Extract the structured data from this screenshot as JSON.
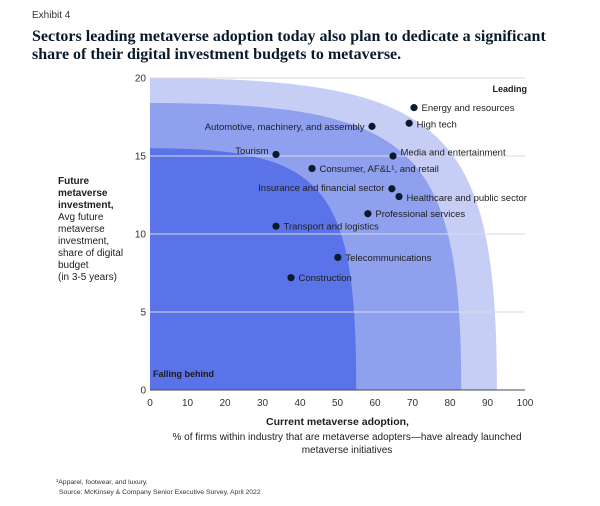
{
  "header": {
    "exhibit": "Exhibit 4"
  },
  "chart_data": {
    "type": "scatter",
    "title_lines": [
      "Sectors leading metaverse adoption today also plan to dedicate a significant",
      "share of their digital investment budgets to metaverse."
    ],
    "xlabel": "Current metaverse adoption,",
    "xlabel_detail_lines": [
      "% of firms within industry that are metaverse adopters—have already launched",
      "metaverse initiatives"
    ],
    "ylabel_lines": [
      "Future",
      "metaverse",
      "investment,"
    ],
    "ylabel_detail_lines": [
      "Avg future",
      "metaverse",
      "investment,",
      "share of digital",
      "budget",
      "(in 3-5 years)"
    ],
    "xlim": [
      0,
      100
    ],
    "ylim": [
      0,
      20
    ],
    "xticks": [
      0,
      10,
      20,
      30,
      40,
      50,
      60,
      70,
      80,
      90,
      100
    ],
    "yticks": [
      0,
      5,
      10,
      15,
      20
    ],
    "point_color": "#0B1A2B",
    "zones": [
      {
        "label": "Leading",
        "x_intercept": 92.5,
        "y_intercept": 20,
        "color": "#C7CEF6"
      },
      {
        "x_intercept": 83,
        "y_intercept": 18.4,
        "color": "#8FA0EF"
      },
      {
        "label": "Falling behind",
        "x_intercept": 55,
        "y_intercept": 15.5,
        "color": "#5B73E9"
      }
    ],
    "points": [
      {
        "label": "Energy and resources",
        "x": 70.4,
        "y": 18.1
      },
      {
        "label": "High tech",
        "x": 69.1,
        "y": 17.1
      },
      {
        "label": "Automotive, machinery, and assembly",
        "x": 59.2,
        "y": 16.9
      },
      {
        "label": "Tourism",
        "x": 33.6,
        "y": 15.1
      },
      {
        "label": "Media and entertainment",
        "x": 64.8,
        "y": 15.0
      },
      {
        "label": "Consumer, AF&L¹, and retail",
        "x": 43.2,
        "y": 14.2
      },
      {
        "label": "Insurance and financial sector",
        "x": 64.5,
        "y": 12.9
      },
      {
        "label": "Healthcare and public sector",
        "x": 66.4,
        "y": 12.4
      },
      {
        "label": "Professional services",
        "x": 58.1,
        "y": 11.3
      },
      {
        "label": "Transport and logistics",
        "x": 33.6,
        "y": 10.5
      },
      {
        "label": "Telecommunications",
        "x": 50.1,
        "y": 8.5
      },
      {
        "label": "Construction",
        "x": 37.6,
        "y": 7.2
      }
    ]
  },
  "footnotes": {
    "note": "¹Apparel, footwear, and luxury.",
    "source": "Source: McKinsey & Company Senior Executive Survey, April 2022"
  }
}
